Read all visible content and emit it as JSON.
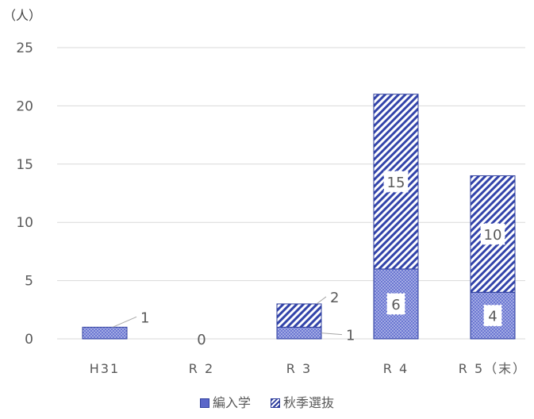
{
  "chart_data": {
    "type": "bar",
    "stacked": true,
    "unit_label": "（人）",
    "categories": [
      "H31",
      "R 2",
      "R 3",
      "R 4",
      "R 5（末）"
    ],
    "series": [
      {
        "name": "編入学",
        "values": [
          1,
          0,
          1,
          6,
          4
        ],
        "color": "#5b67c9",
        "pattern": "dots"
      },
      {
        "name": "秋季選抜",
        "values": [
          0,
          0,
          2,
          15,
          10
        ],
        "color": "#3344aa",
        "pattern": "diagonal-hatch"
      }
    ],
    "data_labels": {
      "編入学": [
        "1",
        "0",
        "1",
        "6",
        "4"
      ],
      "秋季選抜": [
        "",
        "",
        "2",
        "15",
        "10"
      ]
    },
    "yticks": [
      "0",
      "5",
      "10",
      "15",
      "20",
      "25"
    ],
    "ylim": [
      0,
      25
    ],
    "grid": true,
    "legend_position": "bottom"
  }
}
